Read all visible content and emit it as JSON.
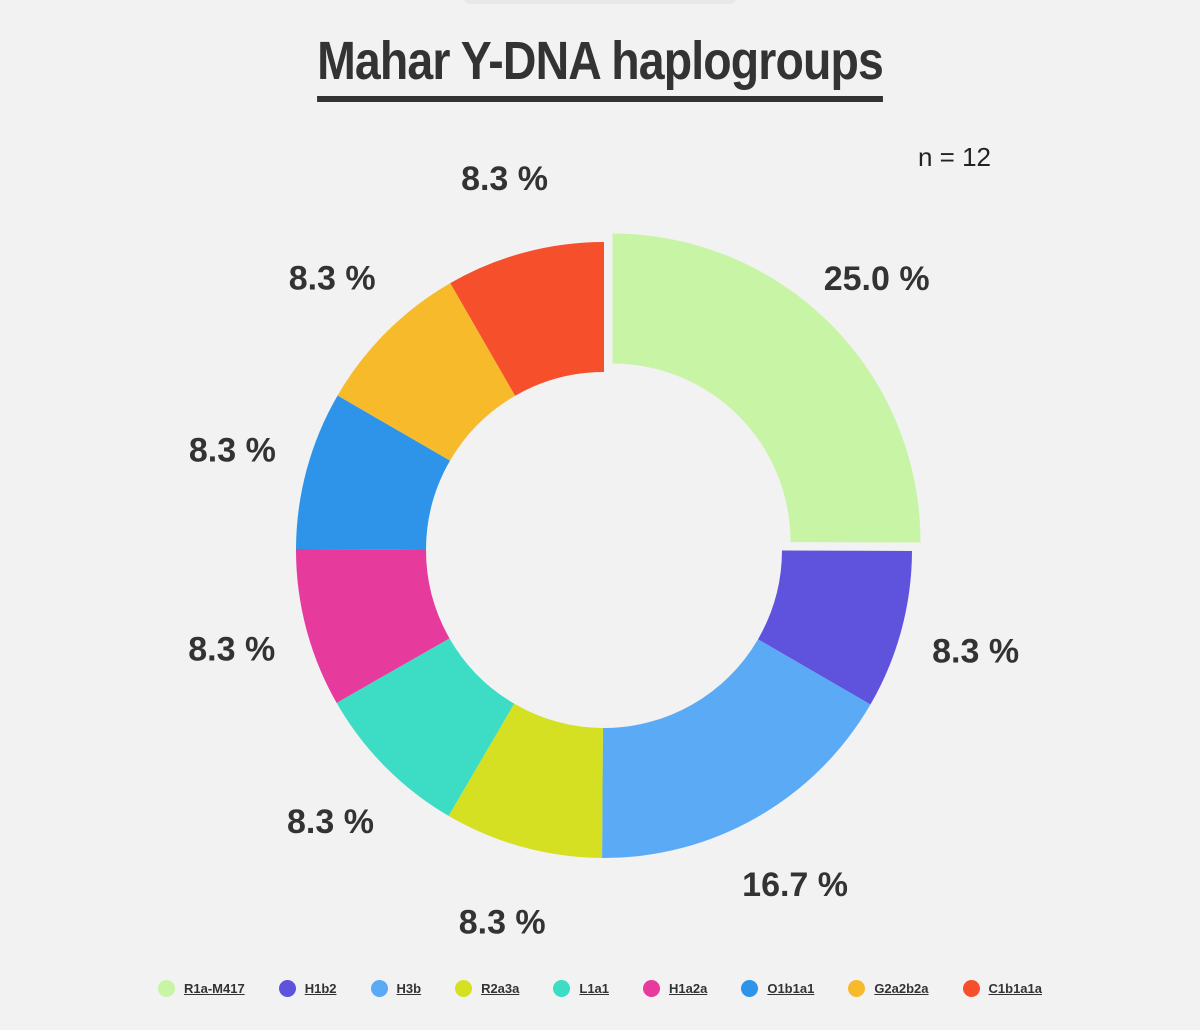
{
  "chart_data": {
    "type": "pie",
    "title": "Mahar Y-DNA haplogroups",
    "annotation": "n = 12",
    "legend_position": "bottom",
    "slices": [
      {
        "label": "R1a-M417",
        "value": 25.0,
        "value_label": "25.0 %",
        "color": "#c8f5a5"
      },
      {
        "label": "H1b2",
        "value": 8.3,
        "value_label": "8.3 %",
        "color": "#5f52dc"
      },
      {
        "label": "H3b",
        "value": 16.7,
        "value_label": "16.7 %",
        "color": "#5aaaf5"
      },
      {
        "label": "R2a3a",
        "value": 8.3,
        "value_label": "8.3 %",
        "color": "#d6e022"
      },
      {
        "label": "L1a1",
        "value": 8.3,
        "value_label": "8.3 %",
        "color": "#3ddcc4"
      },
      {
        "label": "H1a2a",
        "value": 8.3,
        "value_label": "8.3 %",
        "color": "#e63a9c"
      },
      {
        "label": "O1b1a1",
        "value": 8.3,
        "value_label": "8.3 %",
        "color": "#2e94ea"
      },
      {
        "label": "G2a2b2a",
        "value": 8.3,
        "value_label": "8.3 %",
        "color": "#f7ba2a"
      },
      {
        "label": "C1b1a1a",
        "value": 8.3,
        "value_label": "8.3 %",
        "color": "#f54f2b"
      }
    ]
  }
}
